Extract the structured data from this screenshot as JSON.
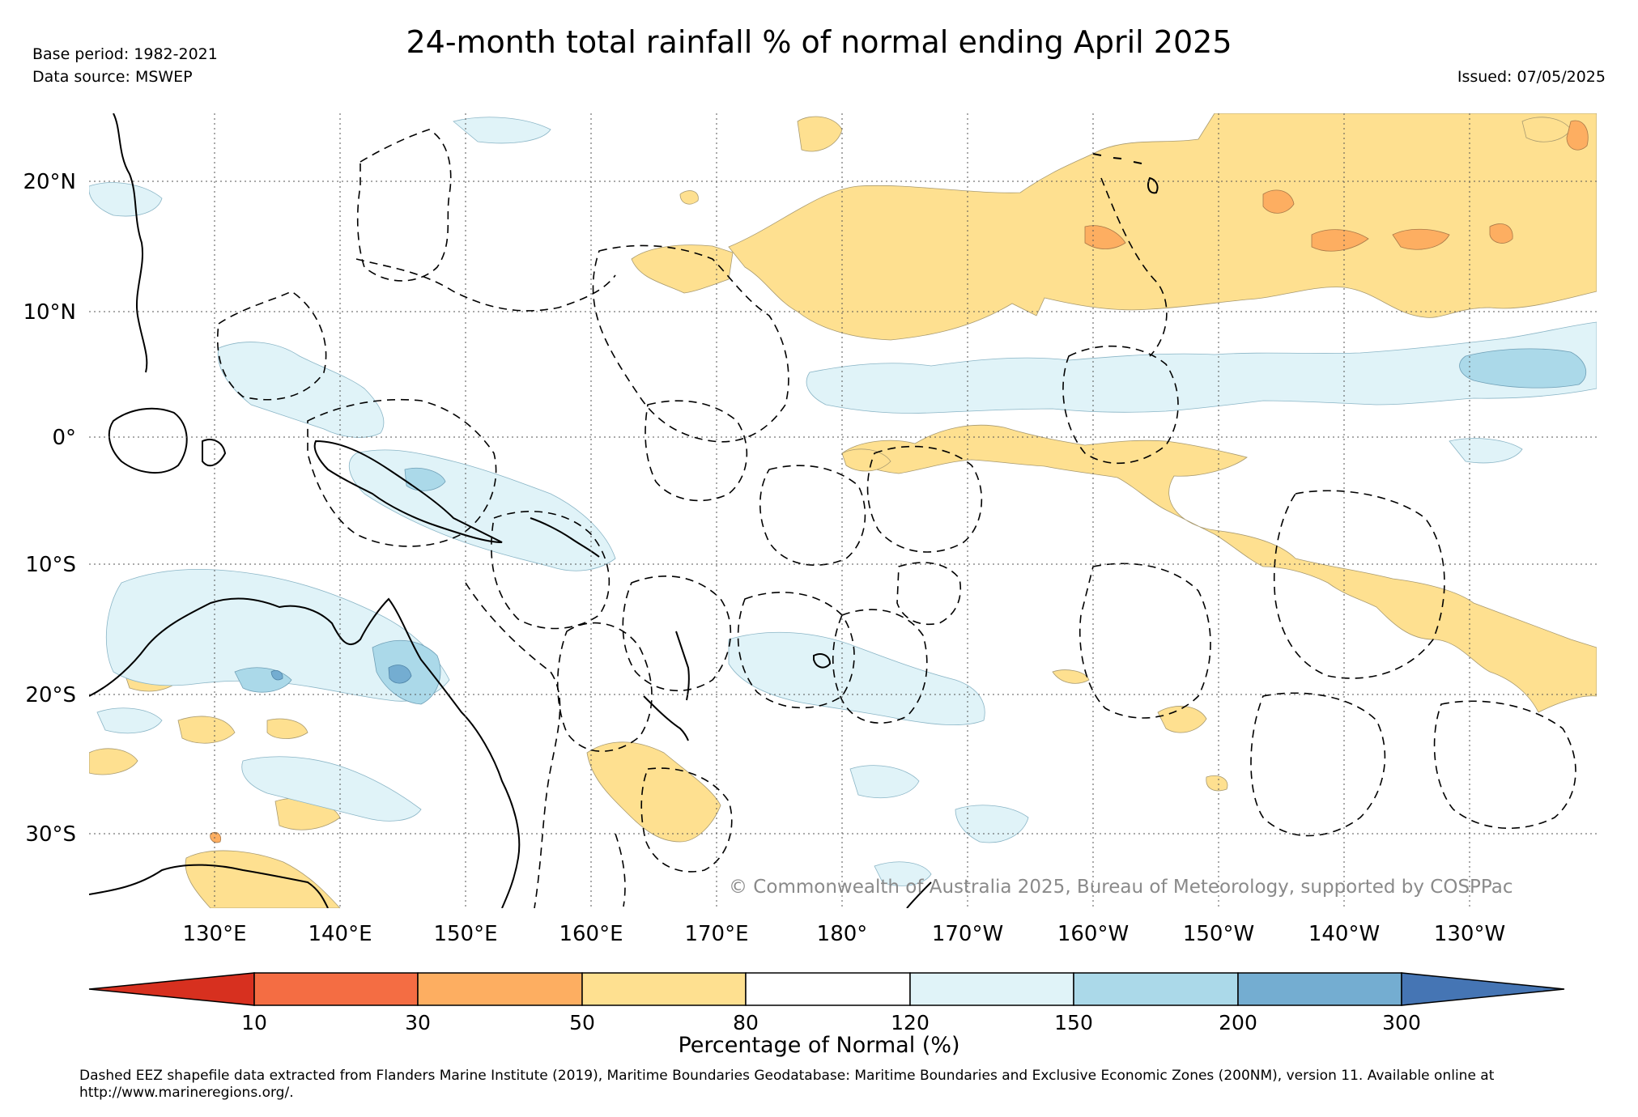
{
  "header": {
    "title": "24-month total rainfall % of normal ending April 2025",
    "base_period": "Base period: 1982-2021",
    "data_source": "Data source: MSWEP",
    "issued": "Issued: 07/05/2025"
  },
  "map": {
    "latitude_labels": [
      "20°N",
      "10°N",
      "0°",
      "10°S",
      "20°S",
      "30°S"
    ],
    "longitude_labels": [
      "130°E",
      "140°E",
      "150°E",
      "160°E",
      "170°E",
      "180°",
      "170°W",
      "160°W",
      "150°W",
      "140°W",
      "130°W"
    ],
    "copyright": "© Commonwealth of Australia 2025, Bureau of Meteorology, supported by COSPPac",
    "gridlines": "dotted",
    "colors": {
      "below_10": "#d7301f",
      "10_30": "#f46d43",
      "30_50": "#fdae61",
      "50_80": "#fee090",
      "80_120": "#ffffff",
      "120_150": "#e0f3f8",
      "150_200": "#abd9e9",
      "200_300": "#74add1",
      "above_300": "#4575b4"
    }
  },
  "colorbar": {
    "title": "Percentage of Normal (%)",
    "ticks": [
      "10",
      "30",
      "50",
      "80",
      "120",
      "150",
      "200",
      "300"
    ]
  },
  "footer": {
    "note": "Dashed EEZ shapefile data extracted from Flanders Marine Institute (2019), Maritime Boundaries Geodatabase: Maritime Boundaries and Exclusive Economic Zones (200NM), version 11. Available online at http://www.marineregions.org/."
  }
}
